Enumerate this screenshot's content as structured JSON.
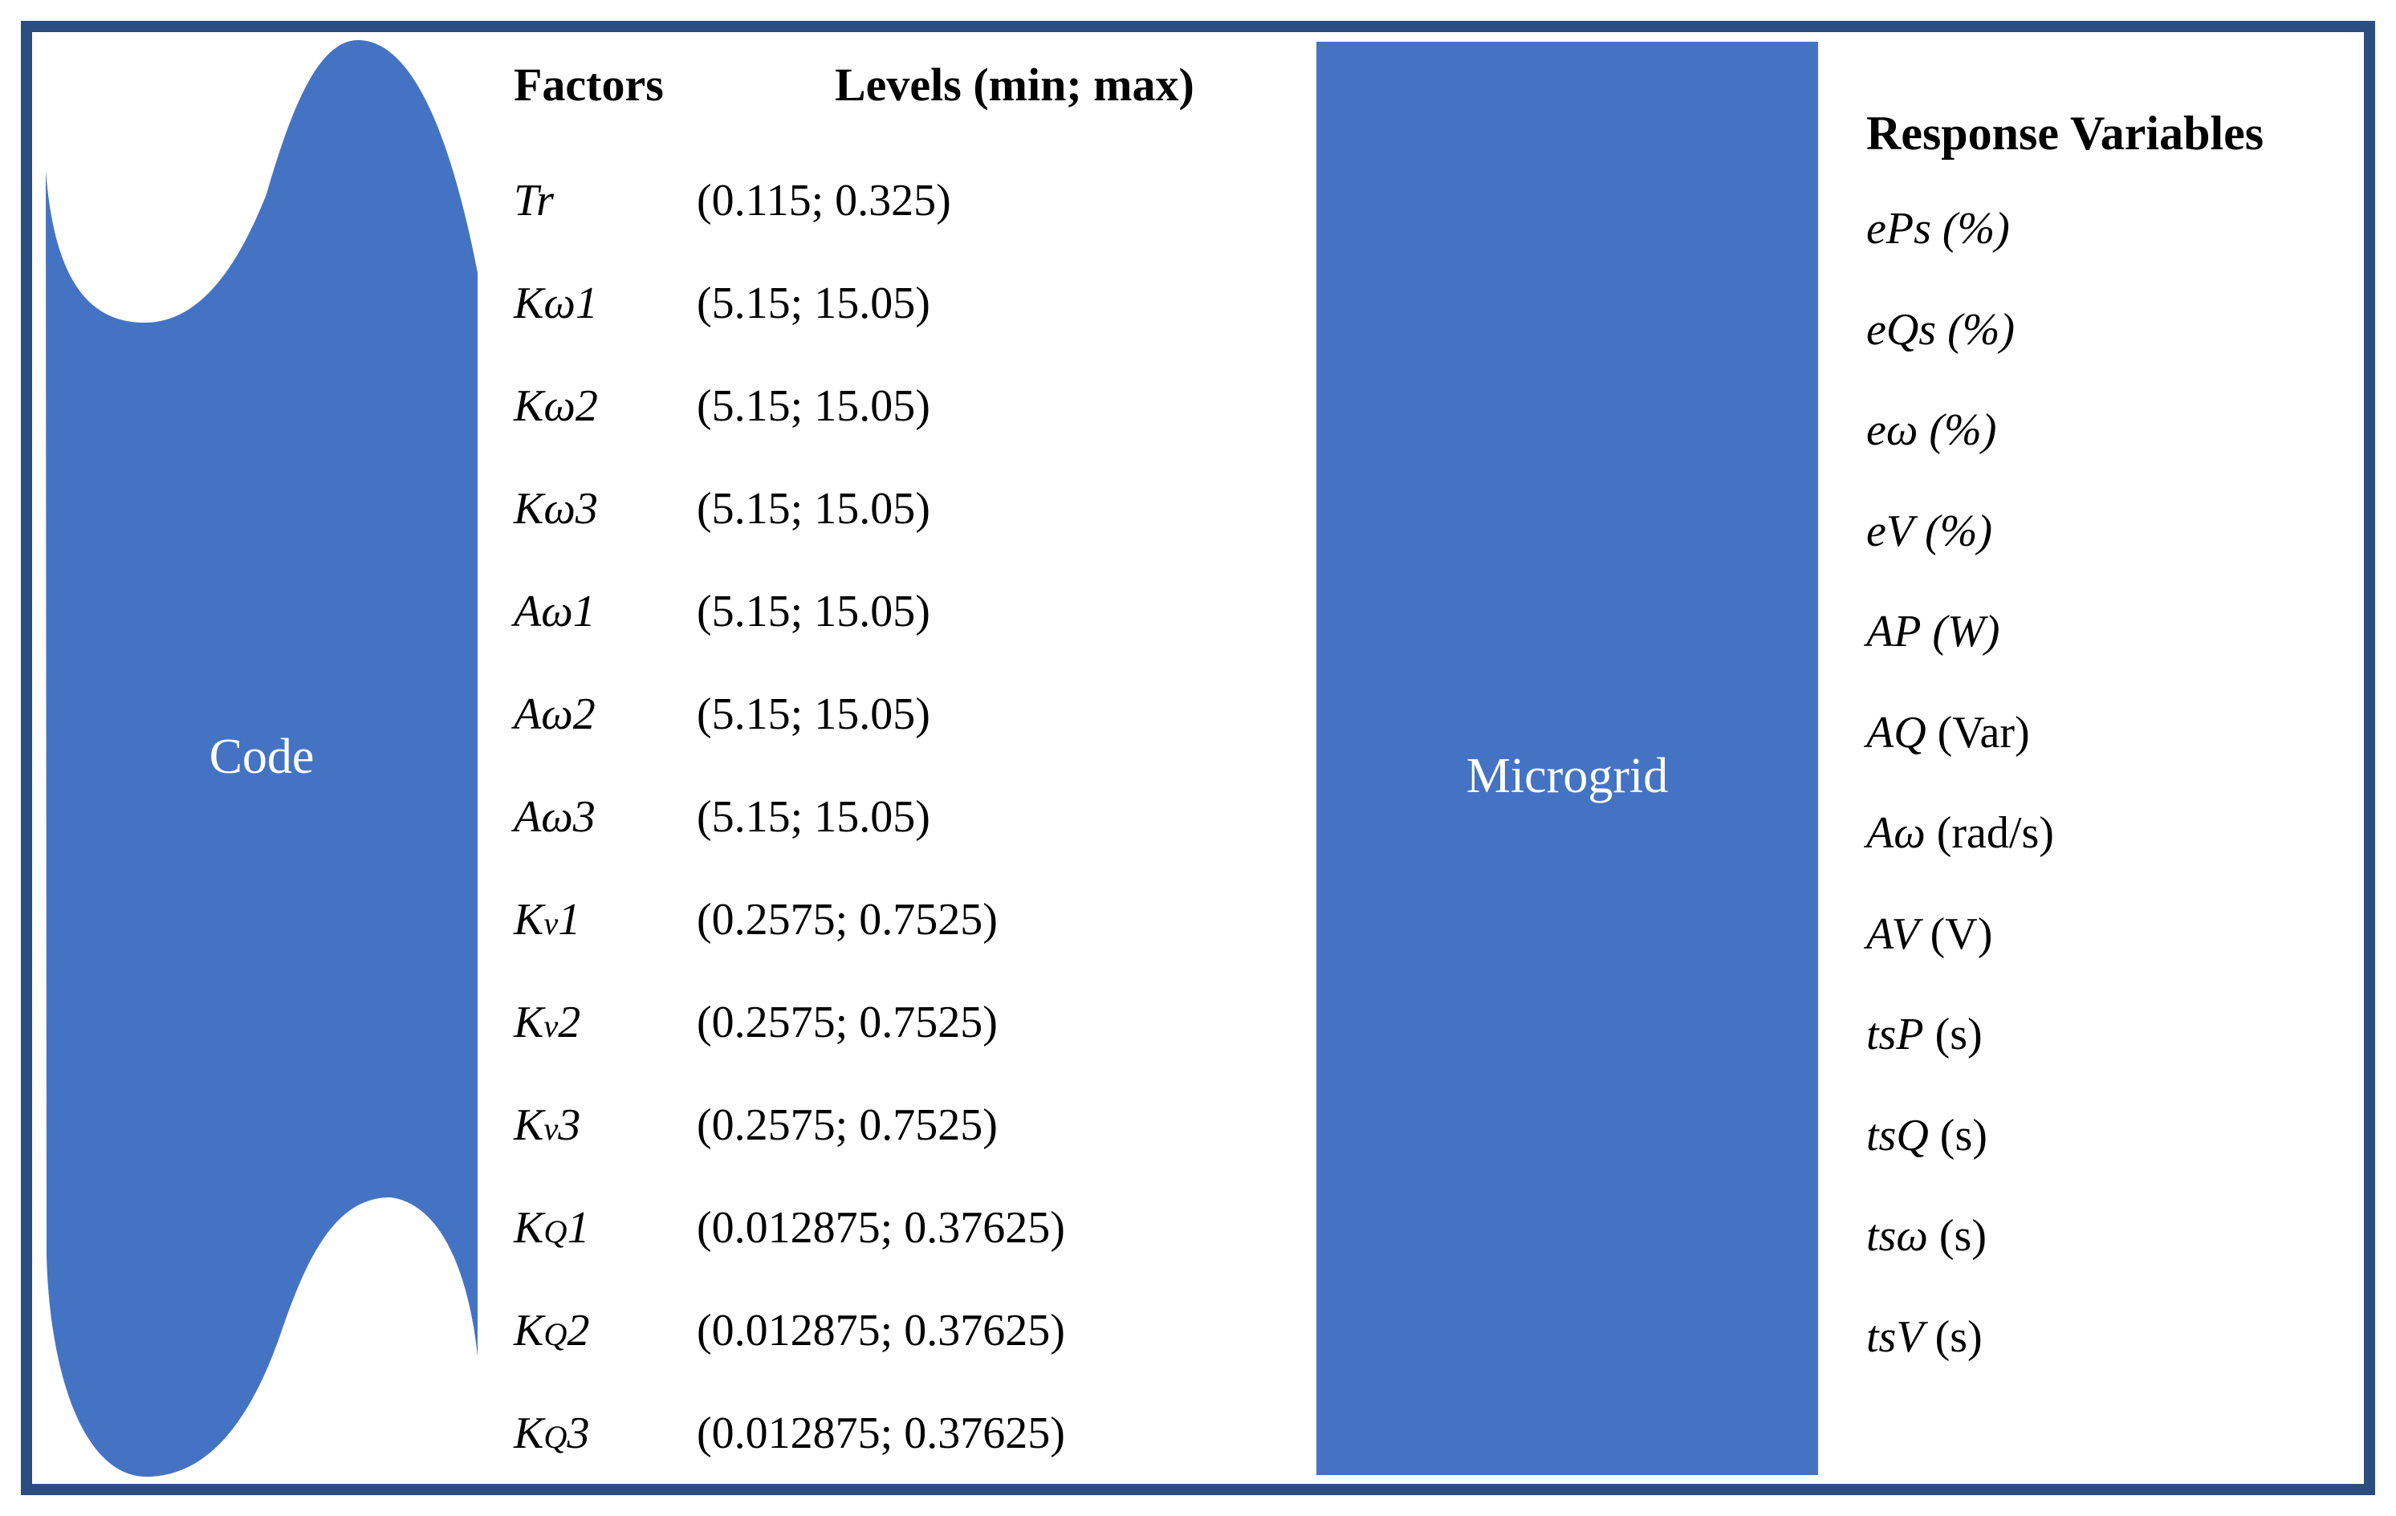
{
  "theme": {
    "accent_blue": "#4573c4",
    "frame_navy": "#2b4d80",
    "ink": "#000000",
    "label_white": "#ffffff",
    "background": "#ffffff"
  },
  "code_block": {
    "label": "Code"
  },
  "microgrid_block": {
    "label": "Microgrid"
  },
  "factors_table": {
    "header_factors": "Factors",
    "header_levels": "Levels (min; max)",
    "rows": [
      {
        "prefix": "T",
        "letter": "r",
        "suffix": "",
        "subscript": false,
        "levels": "(0.115; 0.325)"
      },
      {
        "prefix": "K",
        "letter": "ω",
        "suffix": "1",
        "subscript": false,
        "levels": "(5.15; 15.05)"
      },
      {
        "prefix": "K",
        "letter": "ω",
        "suffix": "2",
        "subscript": false,
        "levels": "(5.15; 15.05)"
      },
      {
        "prefix": "K",
        "letter": "ω",
        "suffix": "3",
        "subscript": false,
        "levels": "(5.15; 15.05)"
      },
      {
        "prefix": "A",
        "letter": "ω",
        "suffix": "1",
        "subscript": false,
        "levels": "(5.15; 15.05)"
      },
      {
        "prefix": "A",
        "letter": "ω",
        "suffix": "2",
        "subscript": false,
        "levels": "(5.15; 15.05)"
      },
      {
        "prefix": "A",
        "letter": "ω",
        "suffix": "3",
        "subscript": false,
        "levels": "(5.15; 15.05)"
      },
      {
        "prefix": "K",
        "letter": "v",
        "suffix": "1",
        "subscript": true,
        "levels": "(0.2575; 0.7525)"
      },
      {
        "prefix": "K",
        "letter": "v",
        "suffix": "2",
        "subscript": true,
        "levels": "(0.2575; 0.7525)"
      },
      {
        "prefix": "K",
        "letter": "v",
        "suffix": "3",
        "subscript": true,
        "levels": "(0.2575; 0.7525)"
      },
      {
        "prefix": "K",
        "letter": "Q",
        "suffix": "1",
        "subscript": true,
        "levels": "(0.012875; 0.37625)"
      },
      {
        "prefix": "K",
        "letter": "Q",
        "suffix": "2",
        "subscript": true,
        "levels": "(0.012875; 0.37625)"
      },
      {
        "prefix": "K",
        "letter": "Q",
        "suffix": "3",
        "subscript": true,
        "levels": "(0.012875; 0.37625)"
      }
    ]
  },
  "response_panel": {
    "header": "Response Variables",
    "items": [
      {
        "symbol": "ePs",
        "unit": "(%)",
        "unit_italic": true
      },
      {
        "symbol": "eQs",
        "unit": "(%)",
        "unit_italic": true
      },
      {
        "symbol": "eω",
        "unit": "(%)",
        "unit_italic": true
      },
      {
        "symbol": "eV",
        "unit": "(%)",
        "unit_italic": true
      },
      {
        "symbol": "AP",
        "unit": "(W)",
        "unit_italic": true
      },
      {
        "symbol": "AQ",
        "unit": "(Var)",
        "unit_italic": false
      },
      {
        "symbol": "Aω",
        "unit": "(rad/s)",
        "unit_italic": false
      },
      {
        "symbol": "AV",
        "unit": "(V)",
        "unit_italic": false
      },
      {
        "symbol": "tsP",
        "unit": "(s)",
        "unit_italic": false
      },
      {
        "symbol": "tsQ",
        "unit": "(s)",
        "unit_italic": false
      },
      {
        "symbol": "tsω",
        "unit": "(s)",
        "unit_italic": false
      },
      {
        "symbol": "tsV",
        "unit": "(s)",
        "unit_italic": false
      }
    ]
  }
}
